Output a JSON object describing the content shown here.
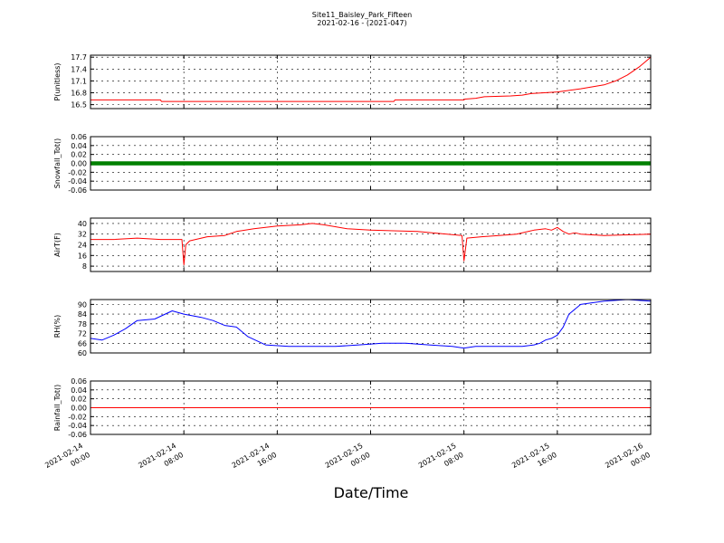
{
  "figure": {
    "title": "Site11_Baisley_Park_Fifteen",
    "subtitle": "2021-02-16 - (2021-047)",
    "xlabel": "Date/Time",
    "x_ticks": [
      {
        "line1": "2021-02-14",
        "line2": "00:00"
      },
      {
        "line1": "2021-02-14",
        "line2": "08:00"
      },
      {
        "line1": "2021-02-14",
        "line2": "16:00"
      },
      {
        "line1": "2021-02-15",
        "line2": "00:00"
      },
      {
        "line1": "2021-02-15",
        "line2": "08:00"
      },
      {
        "line1": "2021-02-15",
        "line2": "16:00"
      },
      {
        "line1": "2021-02-16",
        "line2": "00:00"
      }
    ]
  },
  "chart_data": [
    {
      "type": "line",
      "ylabel": "P(unitless)",
      "color": "#ff0000",
      "ylim": [
        16.4,
        17.75
      ],
      "yticks": [
        "16.5",
        "16.8",
        "17.1",
        "17.4",
        "17.7"
      ],
      "grid": true,
      "x": [
        "2021-02-14 00:00",
        "2021-02-14 06:00",
        "2021-02-14 06:05",
        "2021-02-14 16:00",
        "2021-02-15 00:00",
        "2021-02-15 02:00",
        "2021-02-15 02:05",
        "2021-02-15 08:00",
        "2021-02-15 08:05",
        "2021-02-15 09:00",
        "2021-02-15 09:45",
        "2021-02-15 12:00",
        "2021-02-15 13:00",
        "2021-02-15 13:45",
        "2021-02-15 16:00",
        "2021-02-15 18:00",
        "2021-02-15 20:00",
        "2021-02-15 21:00",
        "2021-02-15 22:00",
        "2021-02-15 23:00",
        "2021-02-16 00:00"
      ],
      "values": [
        16.62,
        16.62,
        16.58,
        16.58,
        16.58,
        16.58,
        16.62,
        16.62,
        16.64,
        16.66,
        16.7,
        16.72,
        16.74,
        16.78,
        16.82,
        16.9,
        17.0,
        17.1,
        17.25,
        17.45,
        17.7
      ]
    },
    {
      "type": "scatter",
      "ylabel": "Snowfall_Tot()",
      "color": "#008000",
      "ylim": [
        -0.06,
        0.06
      ],
      "yticks": [
        "0.06",
        "0.04",
        "0.02",
        "0.00",
        "-0.02",
        "-0.04",
        "-0.06"
      ],
      "grid": true,
      "x": [
        "2021-02-14 00:00",
        "2021-02-16 00:00"
      ],
      "values": [
        0.0,
        0.0
      ]
    },
    {
      "type": "line",
      "ylabel": "AirT(F)",
      "color": "#ff0000",
      "ylim": [
        4,
        44
      ],
      "yticks": [
        "40",
        "32",
        "24",
        "16",
        "8"
      ],
      "grid": true,
      "x": [
        "2021-02-14 00:00",
        "2021-02-14 02:00",
        "2021-02-14 04:00",
        "2021-02-14 06:00",
        "2021-02-14 07:30",
        "2021-02-14 07:50",
        "2021-02-14 08:00",
        "2021-02-14 08:10",
        "2021-02-14 08:30",
        "2021-02-14 10:00",
        "2021-02-14 11:30",
        "2021-02-14 12:30",
        "2021-02-14 14:00",
        "2021-02-14 16:00",
        "2021-02-14 18:00",
        "2021-02-14 19:00",
        "2021-02-14 20:00",
        "2021-02-14 22:00",
        "2021-02-15 00:00",
        "2021-02-15 04:00",
        "2021-02-15 07:50",
        "2021-02-15 08:00",
        "2021-02-15 08:15",
        "2021-02-15 09:30",
        "2021-02-15 11:00",
        "2021-02-15 12:30",
        "2021-02-15 14:00",
        "2021-02-15 15:00",
        "2021-02-15 15:30",
        "2021-02-15 16:00",
        "2021-02-15 16:30",
        "2021-02-15 17:00",
        "2021-02-15 17:30",
        "2021-02-15 18:00",
        "2021-02-15 20:00",
        "2021-02-16 00:00"
      ],
      "values": [
        28,
        28,
        29,
        28,
        28,
        28,
        9,
        24,
        27,
        30,
        31,
        34,
        36,
        38,
        39,
        40,
        39,
        36,
        35,
        34,
        31,
        12,
        29,
        30,
        31,
        32,
        35,
        36,
        35,
        37,
        34,
        32,
        33,
        32,
        31,
        32
      ]
    },
    {
      "type": "line",
      "ylabel": "RH(%)",
      "color": "#0000ff",
      "ylim": [
        60,
        93
      ],
      "yticks": [
        "90",
        "84",
        "78",
        "72",
        "66",
        "60"
      ],
      "grid": true,
      "x": [
        "2021-02-14 00:00",
        "2021-02-14 01:00",
        "2021-02-14 02:00",
        "2021-02-14 03:00",
        "2021-02-14 04:00",
        "2021-02-14 05:30",
        "2021-02-14 07:00",
        "2021-02-14 08:00",
        "2021-02-14 09:30",
        "2021-02-14 10:30",
        "2021-02-14 11:30",
        "2021-02-14 12:30",
        "2021-02-14 13:30",
        "2021-02-14 15:00",
        "2021-02-14 17:00",
        "2021-02-14 19:00",
        "2021-02-14 21:00",
        "2021-02-14 23:00",
        "2021-02-15 01:00",
        "2021-02-15 03:00",
        "2021-02-15 05:00",
        "2021-02-15 07:00",
        "2021-02-15 08:00",
        "2021-02-15 09:00",
        "2021-02-15 11:00",
        "2021-02-15 13:00",
        "2021-02-15 14:00",
        "2021-02-15 14:30",
        "2021-02-15 15:00",
        "2021-02-15 15:30",
        "2021-02-15 16:00",
        "2021-02-15 16:30",
        "2021-02-15 17:00",
        "2021-02-15 18:00",
        "2021-02-15 20:00",
        "2021-02-15 22:00",
        "2021-02-16 00:00"
      ],
      "values": [
        69,
        68,
        71,
        75,
        80,
        81,
        86,
        84,
        82,
        80,
        77,
        76,
        70,
        65,
        64,
        64,
        64,
        65,
        66,
        66,
        65,
        64,
        63,
        64,
        64,
        64,
        65,
        66,
        68,
        69,
        71,
        76,
        84,
        90,
        92,
        93,
        92
      ]
    },
    {
      "type": "line",
      "ylabel": "Rainfall_Tot()",
      "color": "#ff0000",
      "ylim": [
        -0.06,
        0.06
      ],
      "yticks": [
        "0.06",
        "0.04",
        "0.02",
        "0.00",
        "-0.02",
        "-0.04",
        "-0.06"
      ],
      "grid": true,
      "x": [
        "2021-02-14 00:00",
        "2021-02-16 00:00"
      ],
      "values": [
        0.0,
        0.0
      ]
    }
  ]
}
